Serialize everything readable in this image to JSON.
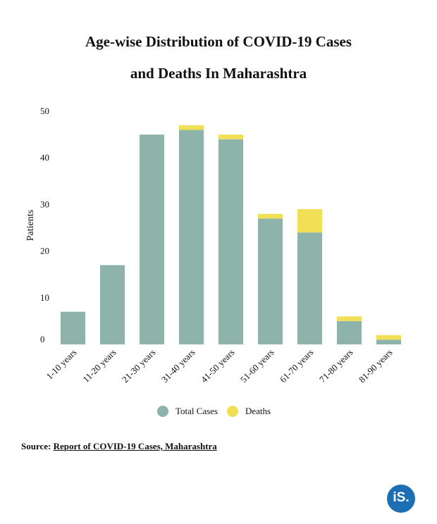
{
  "title_line1": "Age-wise Distribution of COVID-19 Cases",
  "title_line2": "and Deaths In Maharashtra",
  "source": {
    "label": "Source:",
    "link_text": "Report of COVID-19 Cases, Maharashtra"
  },
  "logo_text": "iS.",
  "chart_data": {
    "type": "bar",
    "stacked": true,
    "categories": [
      "1-10 years",
      "11-20 years",
      "21-30 years",
      "31-40 years",
      "41-50 years",
      "51-60 years",
      "61-70 years",
      "71-80 years",
      "81-90 years"
    ],
    "series": [
      {
        "name": "Total Cases",
        "color": "#8db3aa",
        "values": [
          7,
          17,
          45,
          46,
          44,
          27,
          24,
          5,
          1
        ]
      },
      {
        "name": "Deaths",
        "color": "#f1df55",
        "values": [
          0,
          0,
          0,
          1,
          1,
          1,
          5,
          1,
          1
        ]
      }
    ],
    "ylabel": "Patients",
    "xlabel": "",
    "ylim": [
      0,
      50
    ],
    "yticks": [
      0,
      10,
      20,
      30,
      40,
      50
    ],
    "grid": false,
    "legend": "bottom"
  }
}
